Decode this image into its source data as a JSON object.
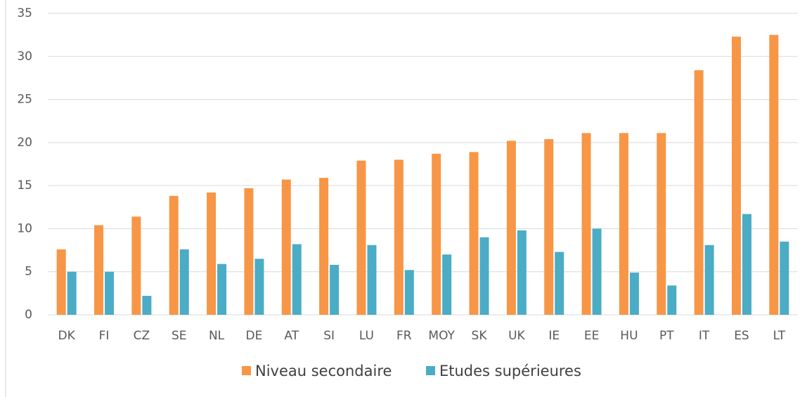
{
  "chart_data": {
    "type": "bar",
    "categories": [
      "DK",
      "FI",
      "CZ",
      "SE",
      "NL",
      "DE",
      "AT",
      "SI",
      "LU",
      "FR",
      "MOY",
      "SK",
      "UK",
      "IE",
      "EE",
      "HU",
      "PT",
      "IT",
      "ES",
      "LT"
    ],
    "series": [
      {
        "name": "Niveau secondaire",
        "color": "#f79646",
        "values": [
          7.6,
          10.4,
          11.4,
          13.8,
          14.2,
          14.7,
          15.7,
          15.9,
          17.9,
          18.0,
          18.7,
          18.9,
          20.2,
          20.4,
          21.1,
          21.1,
          21.1,
          28.4,
          32.3,
          32.5
        ]
      },
      {
        "name": "Etudes supérieures",
        "color": "#4bacc6",
        "values": [
          5.0,
          5.0,
          2.2,
          7.6,
          5.9,
          6.5,
          8.2,
          5.8,
          8.1,
          5.2,
          7.0,
          9.0,
          9.8,
          7.3,
          10.0,
          4.9,
          3.4,
          8.1,
          11.7,
          8.5
        ]
      }
    ],
    "ylim": [
      0,
      35
    ],
    "yticks": [
      0,
      5,
      10,
      15,
      20,
      25,
      30,
      35
    ],
    "grid": true,
    "legend": "bottom"
  }
}
